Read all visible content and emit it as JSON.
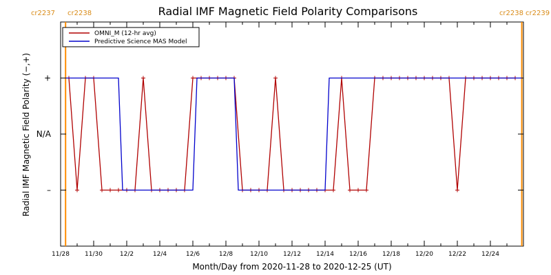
{
  "colors": {
    "omni": "#b00000",
    "model": "#0000cc",
    "cr_line": "#ff8c00",
    "cr_text": "#d98b17"
  },
  "cr_labels": {
    "left_1": "cr2237",
    "left_2": "cr2238",
    "right_1": "cr2238",
    "right_2": "cr2239"
  },
  "chart_data": {
    "type": "line",
    "title": "Radial IMF Magnetic Field Polarity Comparisons",
    "xlabel": "Month/Day from 2020-11-28 to 2020-12-25 (UT)",
    "ylabel": "Radial IMF Magnetic Field Polarity (−,+)",
    "x_unit": "days since 2020-11-28 00:00 UT",
    "xlim": [
      0,
      28
    ],
    "ylim": [
      -2,
      2
    ],
    "yticks": [
      {
        "value": 1,
        "label": "+"
      },
      {
        "value": 0,
        "label": "N/A"
      },
      {
        "value": -1,
        "label": "–"
      }
    ],
    "x_ticks": [
      {
        "value": 0,
        "label": "11/28"
      },
      {
        "value": 2,
        "label": "11/30"
      },
      {
        "value": 4,
        "label": "12/2"
      },
      {
        "value": 6,
        "label": "12/4"
      },
      {
        "value": 8,
        "label": "12/6"
      },
      {
        "value": 10,
        "label": "12/8"
      },
      {
        "value": 12,
        "label": "12/10"
      },
      {
        "value": 14,
        "label": "12/12"
      },
      {
        "value": 16,
        "label": "12/14"
      },
      {
        "value": 18,
        "label": "12/16"
      },
      {
        "value": 20,
        "label": "12/18"
      },
      {
        "value": 22,
        "label": "12/20"
      },
      {
        "value": 24,
        "label": "12/22"
      },
      {
        "value": 26,
        "label": "12/24"
      }
    ],
    "carrington_boundaries": [
      0.3,
      27.9
    ],
    "legend": {
      "position": "top-left"
    },
    "series": [
      {
        "name": "OMNI_M (12-hr avg)",
        "marker": "plus",
        "x": [
          0.5,
          1.0,
          1.5,
          2.0,
          2.5,
          3.0,
          3.5,
          4.0,
          4.5,
          5.0,
          5.5,
          6.0,
          6.5,
          7.0,
          7.5,
          8.0,
          8.5,
          9.0,
          9.5,
          10.0,
          10.5,
          11.0,
          11.5,
          12.0,
          12.5,
          13.0,
          13.5,
          14.0,
          14.5,
          15.0,
          15.5,
          16.0,
          16.5,
          17.0,
          17.5,
          18.0,
          18.5,
          19.0,
          19.5,
          20.0,
          20.5,
          21.0,
          21.5,
          22.0,
          22.5,
          23.0,
          23.5,
          24.0,
          24.5,
          25.0,
          25.5,
          26.0,
          26.5,
          27.0,
          27.5
        ],
        "y": [
          1,
          -1,
          1,
          1,
          -1,
          -1,
          -1,
          -1,
          -1,
          1,
          -1,
          -1,
          -1,
          -1,
          -1,
          1,
          1,
          1,
          1,
          1,
          1,
          -1,
          -1,
          -1,
          -1,
          1,
          -1,
          -1,
          -1,
          -1,
          -1,
          -1,
          -1,
          1,
          -1,
          -1,
          -1,
          1,
          1,
          1,
          1,
          1,
          1,
          1,
          1,
          1,
          1,
          -1,
          1,
          1,
          1,
          1,
          1,
          1,
          1
        ]
      },
      {
        "name": "Predictive Science MAS Model",
        "marker": "none",
        "x": [
          0.3,
          3.5,
          3.75,
          4.5,
          8.0,
          8.25,
          10.0,
          10.5,
          10.75,
          16.0,
          16.25,
          27.9
        ],
        "y": [
          1,
          1,
          -1,
          -1,
          -1,
          1,
          1,
          1,
          -1,
          -1,
          1,
          1
        ]
      }
    ]
  }
}
